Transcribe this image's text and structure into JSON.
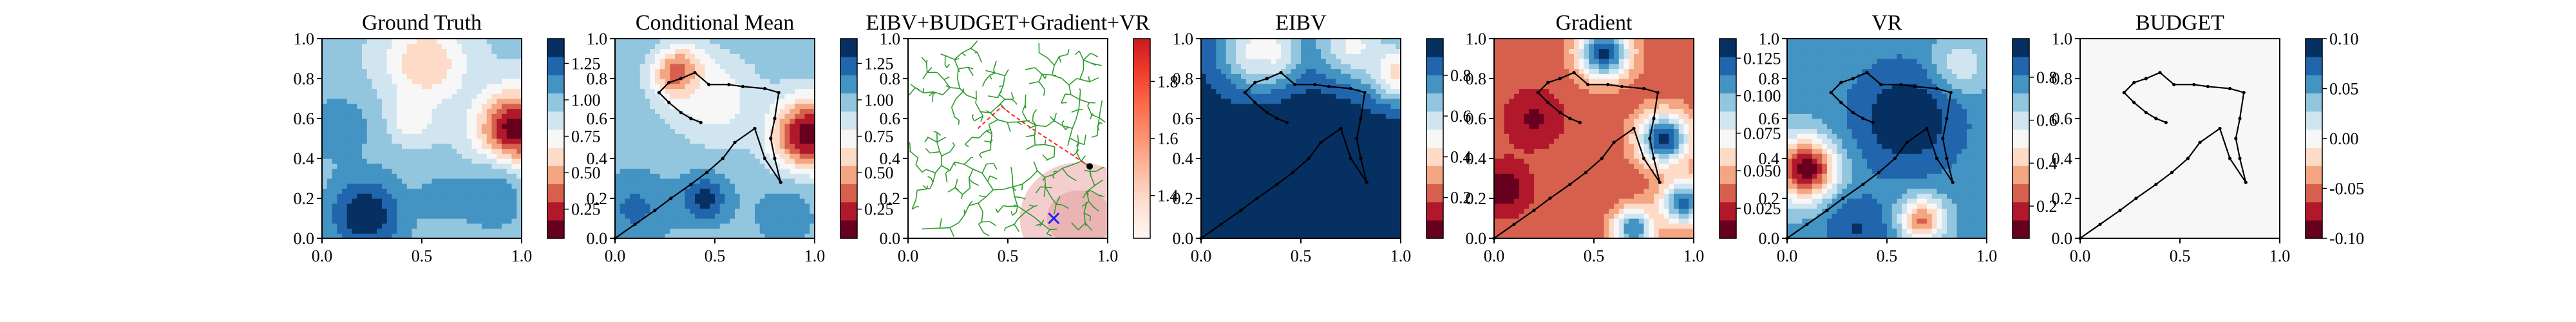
{
  "chart_data": [
    {
      "type": "heatmap",
      "title": "Ground Truth",
      "xlim": [
        0,
        1
      ],
      "ylim": [
        0,
        1
      ],
      "xticks": [
        "0.0",
        "0.5",
        "1.0"
      ],
      "yticks": [
        "0.0",
        "0.2",
        "0.4",
        "0.6",
        "0.8",
        "1.0"
      ],
      "colorbar": {
        "min": 0.05,
        "max": 1.42,
        "ticks": [
          "0.25",
          "0.50",
          "0.75",
          "1.00",
          "1.25"
        ],
        "tick_values": [
          0.25,
          0.5,
          0.75,
          1.0,
          1.25
        ]
      },
      "colormap": "RdBu",
      "field_features": [
        {
          "x": 0.52,
          "y": 0.88,
          "value": 0.55,
          "spread": 0.14
        },
        {
          "x": 0.45,
          "y": 0.6,
          "value": 0.7,
          "spread": 0.08
        },
        {
          "x": 0.97,
          "y": 0.55,
          "value": 0.08,
          "spread": 0.13
        },
        {
          "x": 0.22,
          "y": 0.12,
          "value": 1.4,
          "spread": 0.14
        },
        {
          "x": 0.08,
          "y": 0.55,
          "value": 1.15,
          "spread": 0.12
        },
        {
          "x": 0.85,
          "y": 0.2,
          "value": 1.15,
          "spread": 0.12
        },
        {
          "x": 0.6,
          "y": 0.2,
          "value": 1.1,
          "spread": 0.1
        }
      ],
      "background_value": 0.95
    },
    {
      "type": "heatmap",
      "title": "Conditional Mean",
      "xlim": [
        0,
        1
      ],
      "ylim": [
        0,
        1
      ],
      "xticks": [
        "0.0",
        "0.5",
        "1.0"
      ],
      "yticks": [
        "0.0",
        "0.2",
        "0.4",
        "0.6",
        "0.8",
        "1.0"
      ],
      "colorbar": {
        "min": 0.05,
        "max": 1.42,
        "ticks": [
          "0.25",
          "0.50",
          "0.75",
          "1.00",
          "1.25"
        ],
        "tick_values": [
          0.25,
          0.5,
          0.75,
          1.0,
          1.25
        ]
      },
      "colormap": "RdBu",
      "field_features": [
        {
          "x": 0.33,
          "y": 0.82,
          "value": 0.15,
          "spread": 0.09
        },
        {
          "x": 0.97,
          "y": 0.52,
          "value": 0.08,
          "spread": 0.13
        },
        {
          "x": 0.5,
          "y": 0.7,
          "value": 0.7,
          "spread": 0.15
        },
        {
          "x": 0.45,
          "y": 0.2,
          "value": 1.35,
          "spread": 0.08
        },
        {
          "x": 0.1,
          "y": 0.15,
          "value": 1.2,
          "spread": 0.12
        },
        {
          "x": 0.85,
          "y": 0.12,
          "value": 1.1,
          "spread": 0.12
        }
      ],
      "background_value": 1.0,
      "path": [
        [
          0.0,
          0.0
        ],
        [
          0.1,
          0.07
        ],
        [
          0.2,
          0.14
        ],
        [
          0.28,
          0.2
        ],
        [
          0.38,
          0.27
        ],
        [
          0.46,
          0.33
        ],
        [
          0.54,
          0.4
        ],
        [
          0.6,
          0.48
        ],
        [
          0.7,
          0.55
        ],
        [
          0.75,
          0.4
        ],
        [
          0.83,
          0.28
        ],
        [
          0.8,
          0.4
        ],
        [
          0.78,
          0.5
        ],
        [
          0.8,
          0.6
        ],
        [
          0.82,
          0.73
        ],
        [
          0.75,
          0.75
        ],
        [
          0.64,
          0.76
        ],
        [
          0.57,
          0.77
        ],
        [
          0.47,
          0.77
        ],
        [
          0.4,
          0.83
        ],
        [
          0.33,
          0.8
        ],
        [
          0.27,
          0.78
        ],
        [
          0.22,
          0.73
        ],
        [
          0.27,
          0.68
        ],
        [
          0.33,
          0.63
        ],
        [
          0.38,
          0.6
        ],
        [
          0.43,
          0.58
        ]
      ]
    },
    {
      "type": "tree",
      "title": "EIBV+BUDGET+Gradient+VR",
      "xlim": [
        0,
        1
      ],
      "ylim": [
        0,
        1
      ],
      "xticks": [
        "0.0",
        "0.5",
        "1.0"
      ],
      "yticks": [
        "0.0",
        "0.2",
        "0.4",
        "0.6",
        "0.8",
        "1.0"
      ],
      "colorbar": {
        "min": 1.25,
        "max": 1.95,
        "ticks": [
          "1.4",
          "1.6",
          "1.8"
        ],
        "tick_values": [
          1.4,
          1.6,
          1.8
        ]
      },
      "colormap": "Reds",
      "root": [
        0.91,
        0.36
      ],
      "target": [
        0.73,
        0.1
      ],
      "budget_ellipse": {
        "cx": 0.86,
        "cy": 0.1,
        "rx": 0.3,
        "ry": 0.28
      },
      "highlight_path": [
        [
          0.91,
          0.36
        ],
        [
          0.62,
          0.55
        ],
        [
          0.52,
          0.62
        ],
        [
          0.47,
          0.66
        ],
        [
          0.35,
          0.55
        ]
      ]
    },
    {
      "type": "heatmap",
      "title": "EIBV",
      "xlim": [
        0,
        1
      ],
      "ylim": [
        0,
        1
      ],
      "xticks": [
        "0.0",
        "0.5",
        "1.0"
      ],
      "yticks": [
        "0.0",
        "0.2",
        "0.4",
        "0.6",
        "0.8",
        "1.0"
      ],
      "colorbar": {
        "min": 0.0,
        "max": 0.98,
        "ticks": [
          "0.2",
          "0.4",
          "0.6",
          "0.8"
        ],
        "tick_values": [
          0.2,
          0.4,
          0.6,
          0.8
        ]
      },
      "colormap": "RdBu",
      "field_features": [
        {
          "x": 0.35,
          "y": 0.9,
          "value": 0.05,
          "spread": 0.07
        },
        {
          "x": 0.3,
          "y": 0.92,
          "value": 0.3,
          "spread": 0.15
        },
        {
          "x": 0.75,
          "y": 0.95,
          "value": 0.35,
          "spread": 0.14
        },
        {
          "x": 0.98,
          "y": 0.82,
          "value": 0.2,
          "spread": 0.11
        },
        {
          "x": 0.5,
          "y": 0.2,
          "value": 0.96,
          "spread": 0.5
        }
      ],
      "background_value": 0.95,
      "path": [
        [
          0.0,
          0.0
        ],
        [
          0.1,
          0.07
        ],
        [
          0.2,
          0.14
        ],
        [
          0.28,
          0.2
        ],
        [
          0.38,
          0.27
        ],
        [
          0.46,
          0.33
        ],
        [
          0.54,
          0.4
        ],
        [
          0.6,
          0.48
        ],
        [
          0.7,
          0.55
        ],
        [
          0.75,
          0.4
        ],
        [
          0.83,
          0.28
        ],
        [
          0.8,
          0.4
        ],
        [
          0.78,
          0.5
        ],
        [
          0.8,
          0.6
        ],
        [
          0.82,
          0.73
        ],
        [
          0.75,
          0.75
        ],
        [
          0.64,
          0.76
        ],
        [
          0.57,
          0.77
        ],
        [
          0.47,
          0.77
        ],
        [
          0.4,
          0.83
        ],
        [
          0.33,
          0.8
        ],
        [
          0.27,
          0.78
        ],
        [
          0.22,
          0.73
        ],
        [
          0.27,
          0.68
        ],
        [
          0.33,
          0.63
        ],
        [
          0.38,
          0.6
        ],
        [
          0.43,
          0.58
        ]
      ]
    },
    {
      "type": "heatmap",
      "title": "Gradient",
      "xlim": [
        0,
        1
      ],
      "ylim": [
        0,
        1
      ],
      "xticks": [
        "0.0",
        "0.5",
        "1.0"
      ],
      "yticks": [
        "0.0",
        "0.2",
        "0.4",
        "0.6",
        "0.8",
        "1.0"
      ],
      "colorbar": {
        "min": 0.005,
        "max": 0.138,
        "ticks": [
          "0.025",
          "0.050",
          "0.075",
          "0.100",
          "0.125"
        ],
        "tick_values": [
          0.025,
          0.05,
          0.075,
          0.1,
          0.125
        ]
      },
      "colormap": "RdBu",
      "field_features": [
        {
          "x": 0.55,
          "y": 0.93,
          "value": 0.13,
          "spread": 0.09
        },
        {
          "x": 0.85,
          "y": 0.5,
          "value": 0.13,
          "spread": 0.09
        },
        {
          "x": 0.95,
          "y": 0.18,
          "value": 0.12,
          "spread": 0.08
        },
        {
          "x": 0.7,
          "y": 0.05,
          "value": 0.115,
          "spread": 0.07
        },
        {
          "x": 0.05,
          "y": 0.25,
          "value": 0.01,
          "spread": 0.09
        },
        {
          "x": 0.2,
          "y": 0.6,
          "value": 0.015,
          "spread": 0.1
        }
      ],
      "background_value": 0.035,
      "path": [
        [
          0.0,
          0.0
        ],
        [
          0.1,
          0.07
        ],
        [
          0.2,
          0.14
        ],
        [
          0.28,
          0.2
        ],
        [
          0.38,
          0.27
        ],
        [
          0.46,
          0.33
        ],
        [
          0.54,
          0.4
        ],
        [
          0.6,
          0.48
        ],
        [
          0.7,
          0.55
        ],
        [
          0.75,
          0.4
        ],
        [
          0.83,
          0.28
        ],
        [
          0.8,
          0.4
        ],
        [
          0.78,
          0.5
        ],
        [
          0.8,
          0.6
        ],
        [
          0.82,
          0.73
        ],
        [
          0.75,
          0.75
        ],
        [
          0.64,
          0.76
        ],
        [
          0.57,
          0.77
        ],
        [
          0.47,
          0.77
        ],
        [
          0.4,
          0.83
        ],
        [
          0.33,
          0.8
        ],
        [
          0.27,
          0.78
        ],
        [
          0.22,
          0.73
        ],
        [
          0.27,
          0.68
        ],
        [
          0.33,
          0.63
        ],
        [
          0.38,
          0.6
        ],
        [
          0.43,
          0.58
        ]
      ]
    },
    {
      "type": "heatmap",
      "title": "VR",
      "xlim": [
        0,
        1
      ],
      "ylim": [
        0,
        1
      ],
      "xticks": [
        "0.0",
        "0.5",
        "1.0"
      ],
      "yticks": [
        "0.0",
        "0.2",
        "0.4",
        "0.6",
        "0.8",
        "1.0"
      ],
      "colorbar": {
        "min": 0.05,
        "max": 0.98,
        "ticks": [
          "0.2",
          "0.4",
          "0.6",
          "0.8"
        ],
        "tick_values": [
          0.2,
          0.4,
          0.6,
          0.8
        ]
      },
      "colormap": "RdBu",
      "field_features": [
        {
          "x": 0.1,
          "y": 0.35,
          "value": 0.05,
          "spread": 0.11
        },
        {
          "x": 0.67,
          "y": 0.1,
          "value": 0.25,
          "spread": 0.08
        },
        {
          "x": 0.85,
          "y": 0.85,
          "value": 0.5,
          "spread": 0.1
        },
        {
          "x": 0.6,
          "y": 0.6,
          "value": 0.97,
          "spread": 0.2
        },
        {
          "x": 0.35,
          "y": 0.05,
          "value": 0.9,
          "spread": 0.12
        }
      ],
      "background_value": 0.75,
      "path": [
        [
          0.0,
          0.0
        ],
        [
          0.1,
          0.07
        ],
        [
          0.2,
          0.14
        ],
        [
          0.28,
          0.2
        ],
        [
          0.38,
          0.27
        ],
        [
          0.46,
          0.33
        ],
        [
          0.54,
          0.4
        ],
        [
          0.6,
          0.48
        ],
        [
          0.7,
          0.55
        ],
        [
          0.75,
          0.4
        ],
        [
          0.83,
          0.28
        ],
        [
          0.8,
          0.4
        ],
        [
          0.78,
          0.5
        ],
        [
          0.8,
          0.6
        ],
        [
          0.82,
          0.73
        ],
        [
          0.75,
          0.75
        ],
        [
          0.64,
          0.76
        ],
        [
          0.57,
          0.77
        ],
        [
          0.47,
          0.77
        ],
        [
          0.4,
          0.83
        ],
        [
          0.33,
          0.8
        ],
        [
          0.27,
          0.78
        ],
        [
          0.22,
          0.73
        ],
        [
          0.27,
          0.68
        ],
        [
          0.33,
          0.63
        ],
        [
          0.38,
          0.6
        ],
        [
          0.43,
          0.58
        ]
      ]
    },
    {
      "type": "heatmap",
      "title": "BUDGET",
      "xlim": [
        0,
        1
      ],
      "ylim": [
        0,
        1
      ],
      "xticks": [
        "0.0",
        "0.5",
        "1.0"
      ],
      "yticks": [
        "0.0",
        "0.2",
        "0.4",
        "0.6",
        "0.8",
        "1.0"
      ],
      "colorbar": {
        "min": -0.1,
        "max": 0.1,
        "ticks": [
          "-0.10",
          "-0.05",
          "0.00",
          "0.05",
          "0.10"
        ],
        "tick_values": [
          -0.1,
          -0.05,
          0.0,
          0.05,
          0.1
        ]
      },
      "colormap": "RdBu",
      "field_features": [],
      "background_value": 0.0,
      "path": [
        [
          0.0,
          0.0
        ],
        [
          0.1,
          0.07
        ],
        [
          0.2,
          0.14
        ],
        [
          0.28,
          0.2
        ],
        [
          0.38,
          0.27
        ],
        [
          0.46,
          0.33
        ],
        [
          0.54,
          0.4
        ],
        [
          0.6,
          0.48
        ],
        [
          0.7,
          0.55
        ],
        [
          0.75,
          0.4
        ],
        [
          0.83,
          0.28
        ],
        [
          0.8,
          0.4
        ],
        [
          0.78,
          0.5
        ],
        [
          0.8,
          0.6
        ],
        [
          0.82,
          0.73
        ],
        [
          0.75,
          0.75
        ],
        [
          0.64,
          0.76
        ],
        [
          0.57,
          0.77
        ],
        [
          0.47,
          0.77
        ],
        [
          0.4,
          0.83
        ],
        [
          0.33,
          0.8
        ],
        [
          0.27,
          0.78
        ],
        [
          0.22,
          0.73
        ],
        [
          0.27,
          0.68
        ],
        [
          0.33,
          0.63
        ],
        [
          0.38,
          0.6
        ],
        [
          0.43,
          0.58
        ]
      ]
    }
  ],
  "colors": {
    "path": "#000000",
    "tree": "#2e9b2e",
    "highlight": "#ff2020",
    "target": "#2020ff",
    "budget_fill": "#f2c5c5"
  }
}
